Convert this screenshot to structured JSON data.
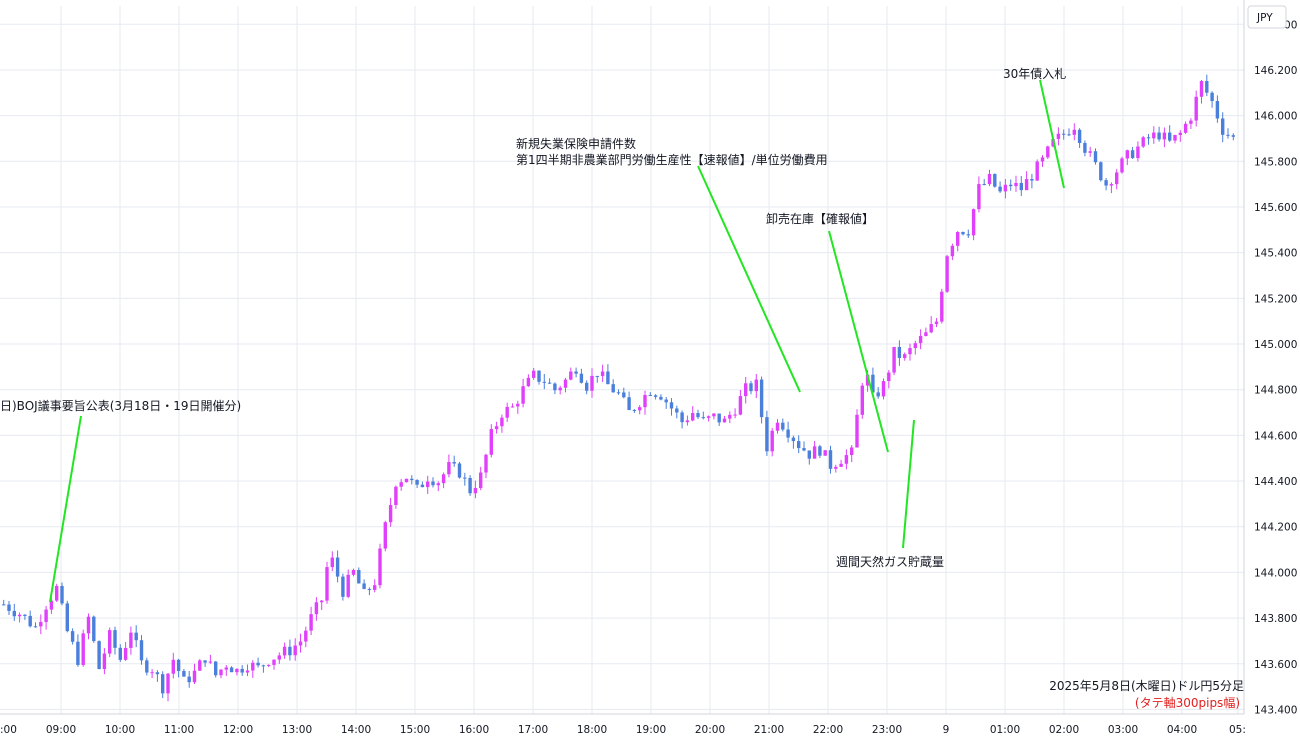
{
  "chart_data": {
    "type": "candlestick",
    "instrument": "JPY",
    "ylim": [
      143.38,
      146.48
    ],
    "y_ticks": [
      "146.400",
      "146.200",
      "146.000",
      "145.800",
      "145.600",
      "145.400",
      "145.200",
      "145.000",
      "144.800",
      "144.600",
      "144.400",
      "144.200",
      "144.000",
      "143.800",
      "143.600",
      "143.400"
    ],
    "x_ticks": [
      ":00",
      "09:00",
      "10:00",
      "11:00",
      "12:00",
      "13:00",
      "14:00",
      "15:00",
      "16:00",
      "17:00",
      "18:00",
      "19:00",
      "20:00",
      "21:00",
      "22:00",
      "23:00",
      "9",
      "01:00",
      "02:00",
      "03:00",
      "04:00",
      "05:"
    ],
    "grid": true,
    "colors": {
      "up": "#e040fb",
      "down": "#4a7fdc",
      "grid": "#e6eaf0",
      "annotation_line": "#22e622",
      "footer_note": "#e02020"
    },
    "price_path": [
      [
        0,
        143.86
      ],
      [
        3,
        143.82
      ],
      [
        6,
        143.76
      ],
      [
        8,
        143.86
      ],
      [
        10,
        143.93
      ],
      [
        12,
        143.74
      ],
      [
        14,
        143.62
      ],
      [
        16,
        143.8
      ],
      [
        18,
        143.58
      ],
      [
        20,
        143.72
      ],
      [
        22,
        143.62
      ],
      [
        24,
        143.75
      ],
      [
        26,
        143.6
      ],
      [
        28,
        143.58
      ],
      [
        30,
        143.5
      ],
      [
        32,
        143.62
      ],
      [
        34,
        143.52
      ],
      [
        36,
        143.56
      ],
      [
        38,
        143.63
      ],
      [
        40,
        143.55
      ],
      [
        42,
        143.6
      ],
      [
        44,
        143.57
      ],
      [
        46,
        143.6
      ],
      [
        48,
        143.58
      ],
      [
        50,
        143.62
      ],
      [
        52,
        143.64
      ],
      [
        54,
        143.66
      ],
      [
        56,
        143.7
      ],
      [
        58,
        143.8
      ],
      [
        60,
        143.88
      ],
      [
        61,
        144.02
      ],
      [
        62,
        144.05
      ],
      [
        64,
        143.92
      ],
      [
        66,
        144.0
      ],
      [
        68,
        143.9
      ],
      [
        70,
        143.96
      ],
      [
        72,
        144.2
      ],
      [
        74,
        144.4
      ],
      [
        76,
        144.42
      ],
      [
        78,
        144.36
      ],
      [
        80,
        144.42
      ],
      [
        82,
        144.4
      ],
      [
        84,
        144.46
      ],
      [
        86,
        144.44
      ],
      [
        88,
        144.36
      ],
      [
        90,
        144.42
      ],
      [
        92,
        144.6
      ],
      [
        94,
        144.7
      ],
      [
        96,
        144.72
      ],
      [
        98,
        144.8
      ],
      [
        100,
        144.86
      ],
      [
        102,
        144.84
      ],
      [
        104,
        144.8
      ],
      [
        106,
        144.84
      ],
      [
        108,
        144.9
      ],
      [
        110,
        144.82
      ],
      [
        112,
        144.88
      ],
      [
        114,
        144.82
      ],
      [
        116,
        144.78
      ],
      [
        118,
        144.7
      ],
      [
        120,
        144.75
      ],
      [
        122,
        144.8
      ],
      [
        124,
        144.78
      ],
      [
        126,
        144.72
      ],
      [
        128,
        144.66
      ],
      [
        130,
        144.7
      ],
      [
        132,
        144.66
      ],
      [
        134,
        144.68
      ],
      [
        136,
        144.66
      ],
      [
        138,
        144.72
      ],
      [
        140,
        144.8
      ],
      [
        142,
        144.82
      ],
      [
        144,
        144.55
      ],
      [
        146,
        144.68
      ],
      [
        148,
        144.62
      ],
      [
        150,
        144.56
      ],
      [
        152,
        144.52
      ],
      [
        154,
        144.54
      ],
      [
        156,
        144.47
      ],
      [
        158,
        144.5
      ],
      [
        160,
        144.52
      ],
      [
        162,
        144.84
      ],
      [
        163,
        144.85
      ],
      [
        164,
        144.76
      ],
      [
        166,
        144.82
      ],
      [
        168,
        144.96
      ],
      [
        170,
        144.94
      ],
      [
        172,
        145.0
      ],
      [
        174,
        145.04
      ],
      [
        176,
        145.1
      ],
      [
        178,
        145.4
      ],
      [
        180,
        145.5
      ],
      [
        182,
        145.5
      ],
      [
        184,
        145.68
      ],
      [
        186,
        145.72
      ],
      [
        188,
        145.66
      ],
      [
        190,
        145.7
      ],
      [
        192,
        145.68
      ],
      [
        194,
        145.74
      ],
      [
        196,
        145.8
      ],
      [
        198,
        145.88
      ],
      [
        200,
        145.92
      ],
      [
        202,
        145.96
      ],
      [
        204,
        145.86
      ],
      [
        206,
        145.78
      ],
      [
        208,
        145.7
      ],
      [
        210,
        145.76
      ],
      [
        212,
        145.82
      ],
      [
        214,
        145.86
      ],
      [
        216,
        145.9
      ],
      [
        218,
        145.92
      ],
      [
        220,
        145.88
      ],
      [
        222,
        145.92
      ],
      [
        224,
        146.0
      ],
      [
        226,
        146.14
      ],
      [
        228,
        146.06
      ],
      [
        230,
        145.94
      ],
      [
        232,
        145.9
      ]
    ],
    "annotations": [
      {
        "text": "日)BOJ議事要旨公表(3月18日・19日開催分)"
      },
      {
        "text": "新規失業保険申請件数"
      },
      {
        "text": "第1四半期非農業部門労働生産性【速報値】/単位労働費用"
      },
      {
        "text": "卸売在庫【確報値】"
      },
      {
        "text": "週間天然ガス貯蔵量"
      },
      {
        "text": "30年債入札"
      }
    ],
    "footer_title": "2025年5月8日(木曜日)ドル円5分足",
    "footer_note": "(タテ軸300pips幅)"
  }
}
